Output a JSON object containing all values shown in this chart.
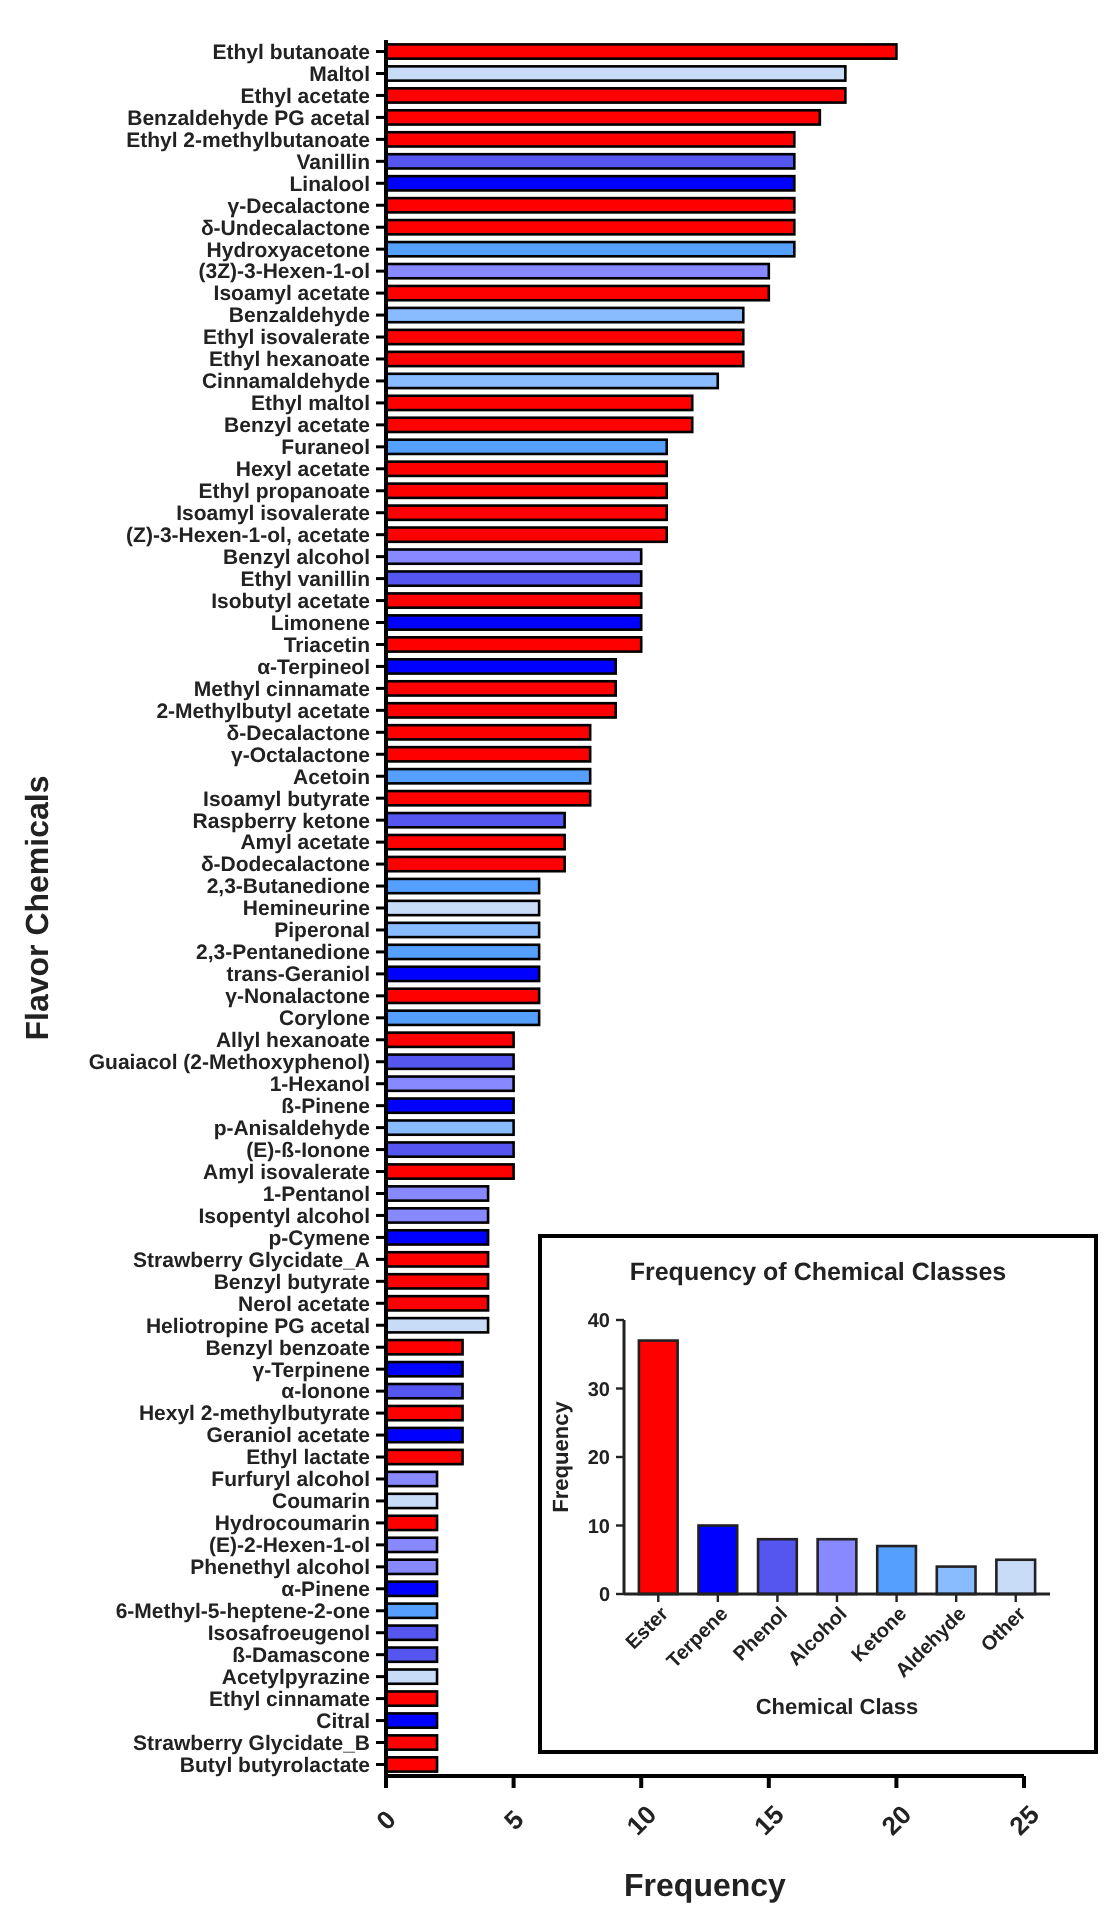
{
  "chart_data": [
    {
      "type": "bar",
      "orientation": "horizontal",
      "xlabel": "Frequency",
      "ylabel": "Flavor Chemicals",
      "xlim": [
        0,
        25
      ],
      "xticks": [
        0,
        5,
        10,
        15,
        20,
        25
      ],
      "categories": [
        "Ethyl butanoate",
        "Maltol",
        "Ethyl acetate",
        "Benzaldehyde PG acetal",
        "Ethyl 2-methylbutanoate",
        "Vanillin",
        "Linalool",
        "γ-Decalactone",
        "δ-Undecalactone",
        "Hydroxyacetone",
        "(3Z)-3-Hexen-1-ol",
        "Isoamyl acetate",
        "Benzaldehyde",
        "Ethyl isovalerate",
        "Ethyl hexanoate",
        "Cinnamaldehyde",
        "Ethyl maltol",
        "Benzyl acetate",
        "Furaneol",
        "Hexyl acetate",
        "Ethyl propanoate",
        "Isoamyl isovalerate",
        "(Z)-3-Hexen-1-ol, acetate",
        "Benzyl alcohol",
        "Ethyl vanillin",
        "Isobutyl acetate",
        "Limonene",
        "Triacetin",
        "α-Terpineol",
        "Methyl cinnamate",
        "2-Methylbutyl acetate",
        "δ-Decalactone",
        "γ-Octalactone",
        "Acetoin",
        "Isoamyl butyrate",
        "Raspberry ketone",
        "Amyl acetate",
        "δ-Dodecalactone",
        "2,3-Butanedione",
        "Hemineurine",
        "Piperonal",
        "2,3-Pentanedione",
        "trans-Geraniol",
        "γ-Nonalactone",
        "Corylone",
        "Allyl hexanoate",
        "Guaiacol (2-Methoxyphenol)",
        "1-Hexanol",
        "ß-Pinene",
        "p-Anisaldehyde",
        "(E)-ß-Ionone",
        "Amyl isovalerate",
        "1-Pentanol",
        "Isopentyl alcohol",
        "p-Cymene",
        "Strawberry Glycidate_A",
        "Benzyl butyrate",
        "Nerol acetate",
        "Heliotropine PG acetal",
        "Benzyl benzoate",
        "γ-Terpinene",
        "α-Ionone",
        "Hexyl 2-methylbutyrate",
        "Geraniol acetate",
        "Ethyl lactate",
        "Furfuryl alcohol",
        "Coumarin",
        "Hydrocoumarin",
        "(E)-2-Hexen-1-ol",
        "Phenethyl alcohol",
        "α-Pinene",
        "6-Methyl-5-heptene-2-one",
        "Isosafroeugenol",
        "ß-Damascone",
        "Acetylpyrazine",
        "Ethyl cinnamate",
        "Citral",
        "Strawberry Glycidate_B",
        "Butyl butyrolactate"
      ],
      "values": [
        20,
        18,
        18,
        17,
        16,
        16,
        16,
        16,
        16,
        16,
        15,
        15,
        14,
        14,
        14,
        13,
        12,
        12,
        11,
        11,
        11,
        11,
        11,
        10,
        10,
        10,
        10,
        10,
        9,
        9,
        9,
        8,
        8,
        8,
        8,
        7,
        7,
        7,
        6,
        6,
        6,
        6,
        6,
        6,
        6,
        5,
        5,
        5,
        5,
        5,
        5,
        5,
        4,
        4,
        4,
        4,
        4,
        4,
        4,
        3,
        3,
        3,
        3,
        3,
        3,
        2,
        2,
        2,
        2,
        2,
        2,
        2,
        2,
        2,
        2,
        2,
        2,
        2,
        2
      ],
      "colors": [
        "#ff0000",
        "#c8dcf8",
        "#ff0000",
        "#ff0000",
        "#ff0000",
        "#5555f0",
        "#0000ff",
        "#ff0000",
        "#ff0000",
        "#55a0ff",
        "#8888ff",
        "#ff0000",
        "#88bbff",
        "#ff0000",
        "#ff0000",
        "#88bbff",
        "#ff0000",
        "#ff0000",
        "#55a0ff",
        "#ff0000",
        "#ff0000",
        "#ff0000",
        "#ff0000",
        "#8888ff",
        "#5555f0",
        "#ff0000",
        "#0000ff",
        "#ff0000",
        "#0000ff",
        "#ff0000",
        "#ff0000",
        "#ff0000",
        "#ff0000",
        "#55a0ff",
        "#ff0000",
        "#5555f0",
        "#ff0000",
        "#ff0000",
        "#55a0ff",
        "#c8dcf8",
        "#88bbff",
        "#55a0ff",
        "#0000ff",
        "#ff0000",
        "#55a0ff",
        "#ff0000",
        "#5555f0",
        "#8888ff",
        "#0000ff",
        "#88bbff",
        "#5555f0",
        "#ff0000",
        "#8888ff",
        "#8888ff",
        "#0000ff",
        "#ff0000",
        "#ff0000",
        "#ff0000",
        "#c8dcf8",
        "#ff0000",
        "#0000ff",
        "#5555f0",
        "#ff0000",
        "#0000ff",
        "#ff0000",
        "#8888ff",
        "#c8dcf8",
        "#ff0000",
        "#8888ff",
        "#8888ff",
        "#0000ff",
        "#55a0ff",
        "#5555f0",
        "#5555f0",
        "#c8dcf8",
        "#ff0000",
        "#0000ff",
        "#ff0000",
        "#ff0000"
      ]
    },
    {
      "type": "bar",
      "title": "Frequency of Chemical Classes",
      "xlabel": "Chemical Class",
      "ylabel": "Frequency",
      "ylim": [
        0,
        40
      ],
      "yticks": [
        0,
        10,
        20,
        30,
        40
      ],
      "categories": [
        "Ester",
        "Terpene",
        "Phenol",
        "Alcohol",
        "Ketone",
        "Aldehyde",
        "Other"
      ],
      "values": [
        37,
        10,
        8,
        8,
        7,
        4,
        5
      ],
      "colors": [
        "#ff0000",
        "#0000ff",
        "#5555f0",
        "#8888ff",
        "#55a0ff",
        "#88bbff",
        "#c8dcf8"
      ]
    }
  ]
}
